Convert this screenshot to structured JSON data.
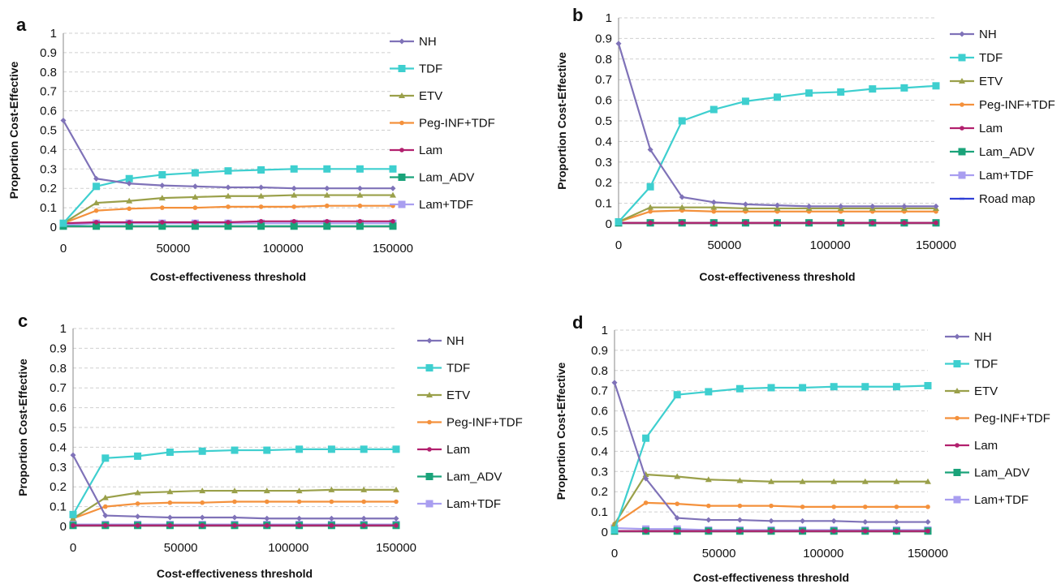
{
  "chart_data": [
    {
      "panel_label": "a",
      "type": "line",
      "xlabel": "Cost-effectiveness threshold",
      "ylabel": "Proportion Cost-Effective",
      "ylim": [
        0,
        1
      ],
      "xlim": [
        0,
        150000
      ],
      "yticks": [
        "0",
        "0.1",
        "0.2",
        "0.3",
        "0.4",
        "0.5",
        "0.6",
        "0.7",
        "0.8",
        "0.9",
        "1"
      ],
      "xticks": [
        "0",
        "50000",
        "100000",
        "150000"
      ],
      "grid": "horizontal dashed",
      "legend_position": "right",
      "x": [
        0,
        15000,
        30000,
        45000,
        60000,
        75000,
        90000,
        105000,
        120000,
        135000,
        150000
      ],
      "series": [
        {
          "name": "NH",
          "color": "#7f72b8",
          "marker": "diamond",
          "values": [
            0.55,
            0.25,
            0.225,
            0.215,
            0.21,
            0.205,
            0.205,
            0.2,
            0.2,
            0.2,
            0.2
          ]
        },
        {
          "name": "TDF",
          "color": "#3ecfcf",
          "marker": "square",
          "values": [
            0.02,
            0.21,
            0.25,
            0.27,
            0.28,
            0.29,
            0.295,
            0.3,
            0.3,
            0.3,
            0.3
          ]
        },
        {
          "name": "ETV",
          "color": "#9aa04a",
          "marker": "triangle",
          "values": [
            0.02,
            0.125,
            0.135,
            0.15,
            0.155,
            0.16,
            0.16,
            0.165,
            0.165,
            0.165,
            0.165
          ]
        },
        {
          "name": "Peg-INF+TDF",
          "color": "#f4913c",
          "marker": "circle",
          "values": [
            0.02,
            0.085,
            0.095,
            0.1,
            0.1,
            0.105,
            0.105,
            0.105,
            0.11,
            0.11,
            0.11
          ]
        },
        {
          "name": "Lam",
          "color": "#b2206e",
          "marker": "circle",
          "values": [
            0.02,
            0.025,
            0.025,
            0.025,
            0.025,
            0.025,
            0.03,
            0.03,
            0.03,
            0.03,
            0.03
          ]
        },
        {
          "name": "Lam_ADV",
          "color": "#1aa37a",
          "marker": "square",
          "values": [
            0.005,
            0.005,
            0.005,
            0.005,
            0.005,
            0.005,
            0.005,
            0.005,
            0.005,
            0.005,
            0.005
          ]
        },
        {
          "name": "Lam+TDF",
          "color": "#a99ef0",
          "marker": "square",
          "values": [
            0.01,
            0.02,
            0.02,
            0.02,
            0.02,
            0.02,
            0.02,
            0.02,
            0.02,
            0.02,
            0.02
          ]
        }
      ]
    },
    {
      "panel_label": "b",
      "type": "line",
      "xlabel": "Cost-effectiveness threshold",
      "ylabel": "Proportion Cost-Effective",
      "ylim": [
        0,
        1
      ],
      "xlim": [
        0,
        150000
      ],
      "yticks": [
        "0",
        "0.1",
        "0.2",
        "0.3",
        "0.4",
        "0.5",
        "0.6",
        "0.7",
        "0.8",
        "0.9",
        "1"
      ],
      "xticks": [
        "0",
        "50000",
        "100000",
        "150000"
      ],
      "grid": "horizontal dashed",
      "legend_position": "right",
      "x": [
        0,
        15000,
        30000,
        45000,
        60000,
        75000,
        90000,
        105000,
        120000,
        135000,
        150000
      ],
      "series": [
        {
          "name": "NH",
          "color": "#7f72b8",
          "marker": "diamond",
          "values": [
            0.875,
            0.36,
            0.13,
            0.105,
            0.095,
            0.09,
            0.085,
            0.085,
            0.085,
            0.085,
            0.085
          ]
        },
        {
          "name": "TDF",
          "color": "#3ecfcf",
          "marker": "square",
          "values": [
            0.01,
            0.18,
            0.5,
            0.555,
            0.595,
            0.615,
            0.635,
            0.64,
            0.655,
            0.66,
            0.67
          ]
        },
        {
          "name": "ETV",
          "color": "#9aa04a",
          "marker": "triangle",
          "values": [
            0.01,
            0.08,
            0.08,
            0.08,
            0.075,
            0.075,
            0.075,
            0.075,
            0.075,
            0.075,
            0.075
          ]
        },
        {
          "name": "Peg-INF+TDF",
          "color": "#f4913c",
          "marker": "circle",
          "values": [
            0.01,
            0.06,
            0.065,
            0.06,
            0.06,
            0.06,
            0.06,
            0.06,
            0.06,
            0.06,
            0.06
          ]
        },
        {
          "name": "Lam",
          "color": "#b2206e",
          "marker": "circle",
          "values": [
            0.005,
            0.005,
            0.005,
            0.005,
            0.005,
            0.005,
            0.005,
            0.005,
            0.005,
            0.005,
            0.005
          ]
        },
        {
          "name": "Lam_ADV",
          "color": "#1aa37a",
          "marker": "square",
          "values": [
            0.005,
            0.005,
            0.005,
            0.005,
            0.005,
            0.005,
            0.005,
            0.005,
            0.005,
            0.005,
            0.005
          ]
        },
        {
          "name": "Lam+TDF",
          "color": "#a99ef0",
          "marker": "square",
          "values": [
            0.005,
            0.005,
            0.005,
            0.005,
            0.005,
            0.005,
            0.005,
            0.005,
            0.005,
            0.005,
            0.005
          ]
        },
        {
          "name": "Road map",
          "color": "#2f3fd6",
          "marker": "dash",
          "values": [
            0.005,
            0.005,
            0.005,
            0.005,
            0.005,
            0.005,
            0.005,
            0.005,
            0.005,
            0.005,
            0.005
          ]
        }
      ]
    },
    {
      "panel_label": "c",
      "type": "line",
      "xlabel": "Cost-effectiveness threshold",
      "ylabel": "Proportion Cost-Effective",
      "ylim": [
        0,
        1
      ],
      "xlim": [
        0,
        150000
      ],
      "yticks": [
        "0",
        "0.1",
        "0.2",
        "0.3",
        "0.4",
        "0.5",
        "0.6",
        "0.7",
        "0.8",
        "0.9",
        "1"
      ],
      "xticks": [
        "0",
        "50000",
        "100000",
        "150000"
      ],
      "grid": "horizontal dashed",
      "legend_position": "right",
      "x": [
        0,
        15000,
        30000,
        45000,
        60000,
        75000,
        90000,
        105000,
        120000,
        135000,
        150000
      ],
      "series": [
        {
          "name": "NH",
          "color": "#7f72b8",
          "marker": "diamond",
          "values": [
            0.36,
            0.055,
            0.05,
            0.045,
            0.045,
            0.045,
            0.04,
            0.04,
            0.04,
            0.04,
            0.04
          ]
        },
        {
          "name": "TDF",
          "color": "#3ecfcf",
          "marker": "square",
          "values": [
            0.06,
            0.345,
            0.355,
            0.375,
            0.38,
            0.385,
            0.385,
            0.39,
            0.39,
            0.39,
            0.39
          ]
        },
        {
          "name": "ETV",
          "color": "#9aa04a",
          "marker": "triangle",
          "values": [
            0.04,
            0.145,
            0.17,
            0.175,
            0.18,
            0.18,
            0.18,
            0.18,
            0.185,
            0.185,
            0.185
          ]
        },
        {
          "name": "Peg-INF+TDF",
          "color": "#f4913c",
          "marker": "circle",
          "values": [
            0.04,
            0.1,
            0.115,
            0.12,
            0.12,
            0.125,
            0.125,
            0.125,
            0.125,
            0.125,
            0.125
          ]
        },
        {
          "name": "Lam",
          "color": "#b2206e",
          "marker": "circle",
          "values": [
            0.005,
            0.005,
            0.005,
            0.005,
            0.005,
            0.005,
            0.005,
            0.005,
            0.005,
            0.005,
            0.005
          ]
        },
        {
          "name": "Lam_ADV",
          "color": "#1aa37a",
          "marker": "square",
          "values": [
            0.005,
            0.005,
            0.005,
            0.005,
            0.005,
            0.005,
            0.005,
            0.005,
            0.005,
            0.005,
            0.005
          ]
        },
        {
          "name": "Lam+TDF",
          "color": "#a99ef0",
          "marker": "square",
          "values": [
            0.01,
            0.01,
            0.01,
            0.01,
            0.01,
            0.01,
            0.01,
            0.01,
            0.01,
            0.01,
            0.01
          ]
        }
      ]
    },
    {
      "panel_label": "d",
      "type": "line",
      "xlabel": "Cost-effectiveness threshold",
      "ylabel": "Proportion Cost-Effective",
      "ylim": [
        0,
        1
      ],
      "xlim": [
        0,
        150000
      ],
      "yticks": [
        "0",
        "0.1",
        "0.2",
        "0.3",
        "0.4",
        "0.5",
        "0.6",
        "0.7",
        "0.8",
        "0.9",
        "1"
      ],
      "xticks": [
        "0",
        "50000",
        "100000",
        "150000"
      ],
      "grid": "horizontal dashed",
      "legend_position": "right",
      "x": [
        0,
        15000,
        30000,
        45000,
        60000,
        75000,
        90000,
        105000,
        120000,
        135000,
        150000
      ],
      "series": [
        {
          "name": "NH",
          "color": "#7f72b8",
          "marker": "diamond",
          "values": [
            0.74,
            0.265,
            0.07,
            0.06,
            0.06,
            0.055,
            0.055,
            0.055,
            0.05,
            0.05,
            0.05
          ]
        },
        {
          "name": "TDF",
          "color": "#3ecfcf",
          "marker": "square",
          "values": [
            0.01,
            0.465,
            0.68,
            0.695,
            0.71,
            0.715,
            0.715,
            0.72,
            0.72,
            0.72,
            0.725
          ]
        },
        {
          "name": "ETV",
          "color": "#9aa04a",
          "marker": "triangle",
          "values": [
            0.04,
            0.285,
            0.275,
            0.26,
            0.255,
            0.25,
            0.25,
            0.25,
            0.25,
            0.25,
            0.25
          ]
        },
        {
          "name": "Peg-INF+TDF",
          "color": "#f4913c",
          "marker": "circle",
          "values": [
            0.04,
            0.145,
            0.14,
            0.13,
            0.13,
            0.13,
            0.125,
            0.125,
            0.125,
            0.125,
            0.125
          ]
        },
        {
          "name": "Lam",
          "color": "#b2206e",
          "marker": "circle",
          "values": [
            0.005,
            0.005,
            0.005,
            0.005,
            0.005,
            0.005,
            0.005,
            0.005,
            0.005,
            0.005,
            0.005
          ]
        },
        {
          "name": "Lam_ADV",
          "color": "#1aa37a",
          "marker": "square",
          "values": [
            0.005,
            0.005,
            0.005,
            0.005,
            0.005,
            0.005,
            0.005,
            0.005,
            0.005,
            0.005,
            0.005
          ]
        },
        {
          "name": "Lam+TDF",
          "color": "#a99ef0",
          "marker": "square",
          "values": [
            0.02,
            0.015,
            0.015,
            0.01,
            0.01,
            0.01,
            0.01,
            0.01,
            0.01,
            0.01,
            0.01
          ]
        }
      ]
    }
  ]
}
